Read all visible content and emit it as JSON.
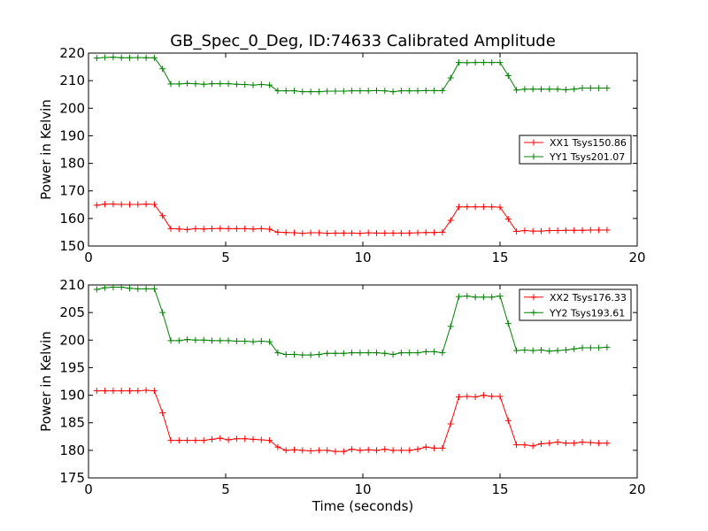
{
  "chart_data": [
    {
      "type": "line",
      "title": "GB_Spec_0_Deg, ID:74633 Calibrated Amplitude",
      "xlabel": "",
      "ylabel": "Power in Kelvin",
      "xlim": [
        0,
        20
      ],
      "ylim": [
        150,
        220
      ],
      "xticks": [
        0,
        5,
        10,
        15,
        20
      ],
      "yticks": [
        150,
        160,
        170,
        180,
        190,
        200,
        210,
        220
      ],
      "grid": false,
      "legend_position": "center-right",
      "x": [
        0.3,
        0.6,
        0.9,
        1.2,
        1.5,
        1.8,
        2.1,
        2.4,
        2.7,
        3.0,
        3.3,
        3.6,
        3.9,
        4.2,
        4.5,
        4.8,
        5.1,
        5.4,
        5.7,
        6.0,
        6.3,
        6.6,
        6.9,
        7.2,
        7.5,
        7.8,
        8.1,
        8.4,
        8.7,
        9.0,
        9.3,
        9.6,
        9.9,
        10.2,
        10.5,
        10.8,
        11.1,
        11.4,
        11.7,
        12.0,
        12.3,
        12.6,
        12.9,
        13.2,
        13.5,
        13.8,
        14.1,
        14.4,
        14.7,
        15.0,
        15.3,
        15.6,
        15.9,
        16.2,
        16.5,
        16.8,
        17.1,
        17.4,
        17.7,
        18.0,
        18.3,
        18.6,
        18.9
      ],
      "series": [
        {
          "name": "XX1 Tsys150.86",
          "color": "#ff0000",
          "values": [
            164.8,
            165.2,
            165.2,
            165.1,
            165.1,
            165.1,
            165.2,
            165.1,
            161.0,
            156.3,
            156.2,
            156.0,
            156.3,
            156.2,
            156.3,
            156.4,
            156.3,
            156.3,
            156.3,
            156.2,
            156.3,
            156.1,
            155.0,
            154.9,
            154.8,
            154.6,
            154.8,
            154.8,
            154.6,
            154.7,
            154.7,
            154.7,
            154.6,
            154.8,
            154.7,
            154.7,
            154.7,
            154.7,
            154.7,
            154.8,
            154.9,
            154.9,
            155.0,
            159.3,
            164.2,
            164.2,
            164.2,
            164.2,
            164.2,
            164.1,
            159.8,
            155.3,
            155.6,
            155.4,
            155.4,
            155.6,
            155.6,
            155.7,
            155.7,
            155.7,
            155.8,
            155.8,
            155.8
          ]
        },
        {
          "name": "YY1 Tsys201.07",
          "color": "#008000",
          "values": [
            218.2,
            218.4,
            218.5,
            218.3,
            218.3,
            218.4,
            218.3,
            218.3,
            214.3,
            208.8,
            208.8,
            209.0,
            208.9,
            208.7,
            208.9,
            208.9,
            208.9,
            208.7,
            208.6,
            208.4,
            208.6,
            208.4,
            206.3,
            206.3,
            206.3,
            206.0,
            206.0,
            206.0,
            206.2,
            206.2,
            206.2,
            206.3,
            206.3,
            206.3,
            206.4,
            206.3,
            206.0,
            206.3,
            206.3,
            206.3,
            206.4,
            206.4,
            206.4,
            211.0,
            216.6,
            216.5,
            216.6,
            216.6,
            216.6,
            216.6,
            211.8,
            206.6,
            206.9,
            206.9,
            206.9,
            206.9,
            206.9,
            206.7,
            206.9,
            207.3,
            207.3,
            207.3,
            207.3
          ]
        }
      ]
    },
    {
      "type": "line",
      "title": "",
      "xlabel": "Time (seconds)",
      "ylabel": "Power in Kelvin",
      "xlim": [
        0,
        20
      ],
      "ylim": [
        175,
        210
      ],
      "xticks": [
        0,
        5,
        10,
        15,
        20
      ],
      "yticks": [
        175,
        180,
        185,
        190,
        195,
        200,
        205,
        210
      ],
      "grid": false,
      "legend_position": "top-right",
      "x": [
        0.3,
        0.6,
        0.9,
        1.2,
        1.5,
        1.8,
        2.1,
        2.4,
        2.7,
        3.0,
        3.3,
        3.6,
        3.9,
        4.2,
        4.5,
        4.8,
        5.1,
        5.4,
        5.7,
        6.0,
        6.3,
        6.6,
        6.9,
        7.2,
        7.5,
        7.8,
        8.1,
        8.4,
        8.7,
        9.0,
        9.3,
        9.6,
        9.9,
        10.2,
        10.5,
        10.8,
        11.1,
        11.4,
        11.7,
        12.0,
        12.3,
        12.6,
        12.9,
        13.2,
        13.5,
        13.8,
        14.1,
        14.4,
        14.7,
        15.0,
        15.3,
        15.6,
        15.9,
        16.2,
        16.5,
        16.8,
        17.1,
        17.4,
        17.7,
        18.0,
        18.3,
        18.6,
        18.9
      ],
      "series": [
        {
          "name": "XX2 Tsys176.33",
          "color": "#ff0000",
          "values": [
            190.8,
            190.8,
            190.8,
            190.8,
            190.8,
            190.8,
            190.9,
            190.8,
            186.8,
            181.8,
            181.8,
            181.8,
            181.8,
            181.8,
            182.0,
            182.2,
            181.9,
            182.1,
            182.1,
            182.0,
            181.9,
            181.8,
            180.6,
            180.0,
            180.1,
            180.0,
            179.9,
            180.0,
            180.0,
            179.8,
            179.8,
            180.2,
            180.0,
            180.1,
            180.0,
            180.2,
            180.0,
            180.0,
            180.0,
            180.2,
            180.6,
            180.4,
            180.4,
            184.8,
            189.7,
            189.8,
            189.7,
            190.0,
            189.8,
            189.8,
            185.4,
            181.0,
            181.0,
            180.8,
            181.2,
            181.3,
            181.5,
            181.3,
            181.3,
            181.5,
            181.4,
            181.3,
            181.3
          ]
        },
        {
          "name": "YY2 Tsys193.61",
          "color": "#008000",
          "values": [
            209.2,
            209.5,
            209.6,
            209.6,
            209.4,
            209.3,
            209.3,
            209.3,
            205.0,
            199.9,
            199.9,
            200.1,
            200.0,
            200.0,
            199.9,
            199.9,
            199.9,
            199.8,
            199.8,
            199.7,
            199.8,
            199.7,
            197.7,
            197.4,
            197.4,
            197.3,
            197.3,
            197.4,
            197.6,
            197.6,
            197.6,
            197.7,
            197.7,
            197.7,
            197.7,
            197.6,
            197.4,
            197.7,
            197.7,
            197.7,
            197.9,
            197.9,
            197.7,
            202.5,
            207.9,
            208.0,
            207.8,
            207.8,
            207.8,
            208.0,
            203.0,
            198.1,
            198.2,
            198.1,
            198.2,
            198.0,
            198.1,
            198.2,
            198.4,
            198.6,
            198.6,
            198.6,
            198.7
          ]
        }
      ]
    }
  ]
}
